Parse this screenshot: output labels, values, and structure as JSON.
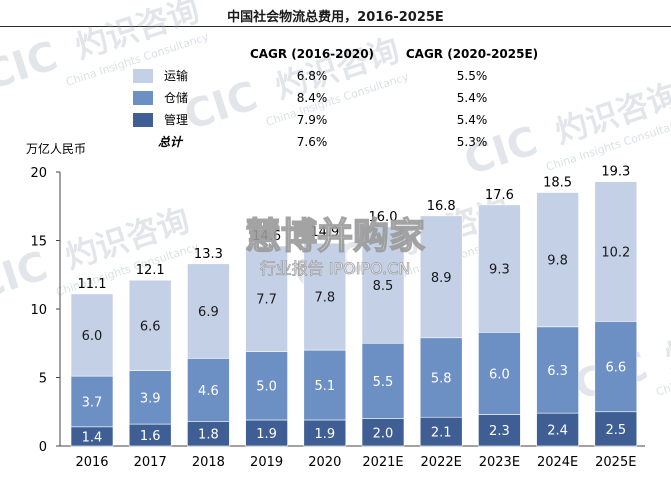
{
  "chart_data": {
    "type": "bar",
    "stacked": true,
    "title": "中国社会物流总费用，2016-2025E",
    "ylabel": "万亿人民币",
    "ylim": [
      0,
      20
    ],
    "yticks": [
      0,
      5,
      10,
      15,
      20
    ],
    "categories": [
      "2016",
      "2017",
      "2018",
      "2019",
      "2020",
      "2021E",
      "2022E",
      "2023E",
      "2024E",
      "2025E"
    ],
    "series": [
      {
        "name": "管理",
        "color": "#3f5f94",
        "values": [
          1.4,
          1.6,
          1.8,
          1.9,
          1.9,
          2.0,
          2.1,
          2.3,
          2.4,
          2.5
        ]
      },
      {
        "name": "仓储",
        "color": "#6c8fc4",
        "values": [
          3.7,
          3.9,
          4.6,
          5.0,
          5.1,
          5.5,
          5.8,
          6.0,
          6.3,
          6.6
        ]
      },
      {
        "name": "运输",
        "color": "#c3d0e6",
        "values": [
          6.0,
          6.6,
          6.9,
          7.7,
          7.8,
          8.5,
          8.9,
          9.3,
          9.8,
          10.2
        ]
      }
    ],
    "totals": [
      11.1,
      12.1,
      13.3,
      14.6,
      14.9,
      16.0,
      16.8,
      17.6,
      18.5,
      19.3
    ],
    "cagr_table": {
      "headers": [
        "CAGR (2016-2020)",
        "CAGR (2020-2025E)"
      ],
      "rows": [
        {
          "label": "运输",
          "color": "#c3d0e6",
          "values": [
            "6.8%",
            "5.5%"
          ]
        },
        {
          "label": "仓储",
          "color": "#6c8fc4",
          "values": [
            "8.4%",
            "5.4%"
          ]
        },
        {
          "label": "管理",
          "color": "#3f5f94",
          "values": [
            "7.9%",
            "5.4%"
          ]
        },
        {
          "label": "总计",
          "color": null,
          "values": [
            "7.6%",
            "5.3%"
          ]
        }
      ]
    }
  },
  "watermarks": {
    "brand": "灼识咨询",
    "brand_en": "China Insights Consultancy",
    "logo": "CIC",
    "site_cn": "慧博并购家",
    "site_url": "行业报告 IPOIPO.CN"
  }
}
